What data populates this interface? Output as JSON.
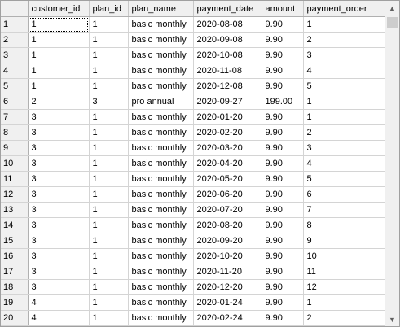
{
  "columns": [
    "",
    "customer_id",
    "plan_id",
    "plan_name",
    "payment_date",
    "amount",
    "payment_order"
  ],
  "rows": [
    [
      "1",
      "1",
      "1",
      "basic monthly",
      "2020-08-08",
      "9.90",
      "1"
    ],
    [
      "2",
      "1",
      "1",
      "basic monthly",
      "2020-09-08",
      "9.90",
      "2"
    ],
    [
      "3",
      "1",
      "1",
      "basic monthly",
      "2020-10-08",
      "9.90",
      "3"
    ],
    [
      "4",
      "1",
      "1",
      "basic monthly",
      "2020-11-08",
      "9.90",
      "4"
    ],
    [
      "5",
      "1",
      "1",
      "basic monthly",
      "2020-12-08",
      "9.90",
      "5"
    ],
    [
      "6",
      "2",
      "3",
      "pro annual",
      "2020-09-27",
      "199.00",
      "1"
    ],
    [
      "7",
      "3",
      "1",
      "basic monthly",
      "2020-01-20",
      "9.90",
      "1"
    ],
    [
      "8",
      "3",
      "1",
      "basic monthly",
      "2020-02-20",
      "9.90",
      "2"
    ],
    [
      "9",
      "3",
      "1",
      "basic monthly",
      "2020-03-20",
      "9.90",
      "3"
    ],
    [
      "10",
      "3",
      "1",
      "basic monthly",
      "2020-04-20",
      "9.90",
      "4"
    ],
    [
      "11",
      "3",
      "1",
      "basic monthly",
      "2020-05-20",
      "9.90",
      "5"
    ],
    [
      "12",
      "3",
      "1",
      "basic monthly",
      "2020-06-20",
      "9.90",
      "6"
    ],
    [
      "13",
      "3",
      "1",
      "basic monthly",
      "2020-07-20",
      "9.90",
      "7"
    ],
    [
      "14",
      "3",
      "1",
      "basic monthly",
      "2020-08-20",
      "9.90",
      "8"
    ],
    [
      "15",
      "3",
      "1",
      "basic monthly",
      "2020-09-20",
      "9.90",
      "9"
    ],
    [
      "16",
      "3",
      "1",
      "basic monthly",
      "2020-10-20",
      "9.90",
      "10"
    ],
    [
      "17",
      "3",
      "1",
      "basic monthly",
      "2020-11-20",
      "9.90",
      "11"
    ],
    [
      "18",
      "3",
      "1",
      "basic monthly",
      "2020-12-20",
      "9.90",
      "12"
    ],
    [
      "19",
      "4",
      "1",
      "basic monthly",
      "2020-01-24",
      "9.90",
      "1"
    ],
    [
      "20",
      "4",
      "1",
      "basic monthly",
      "2020-02-24",
      "9.90",
      "2"
    ]
  ],
  "scrollbar": {
    "up_icon": "chevron-up-icon",
    "down_icon": "chevron-down-icon",
    "up_glyph": "▲",
    "down_glyph": "▼"
  }
}
